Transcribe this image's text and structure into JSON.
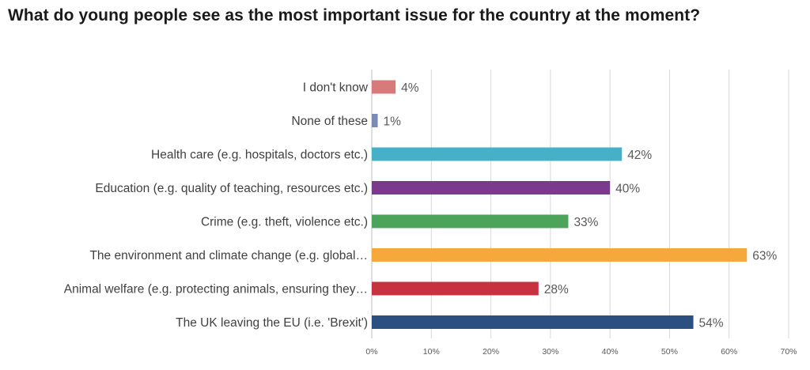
{
  "chart_data": {
    "type": "bar",
    "orientation": "horizontal",
    "title": "What do young people see as the most important issue for the country at the moment?",
    "xlabel": "",
    "ylabel": "",
    "xlim": [
      0,
      70
    ],
    "tick_labels": [
      "0%",
      "10%",
      "20%",
      "30%",
      "40%",
      "50%",
      "60%",
      "70%"
    ],
    "grid": "vertical",
    "legend": "none",
    "categories": [
      "I don't know",
      "None of these",
      "Health care (e.g. hospitals, doctors etc.)",
      "Education (e.g. quality of teaching, resources etc.)",
      "Crime (e.g. theft, violence etc.)",
      "The environment and climate change (e.g. global…",
      "Animal welfare (e.g. protecting animals, ensuring they…",
      "The UK leaving the EU (i.e. 'Brexit')"
    ],
    "values": [
      4,
      1,
      42,
      40,
      33,
      63,
      28,
      54
    ],
    "value_labels": [
      "4%",
      "1%",
      "42%",
      "40%",
      "33%",
      "63%",
      "28%",
      "54%"
    ],
    "colors": [
      "#d97a7a",
      "#7a8bb5",
      "#45b0c8",
      "#7a3b8f",
      "#4ca35a",
      "#f4a93a",
      "#c8313e",
      "#2b4f80"
    ]
  }
}
